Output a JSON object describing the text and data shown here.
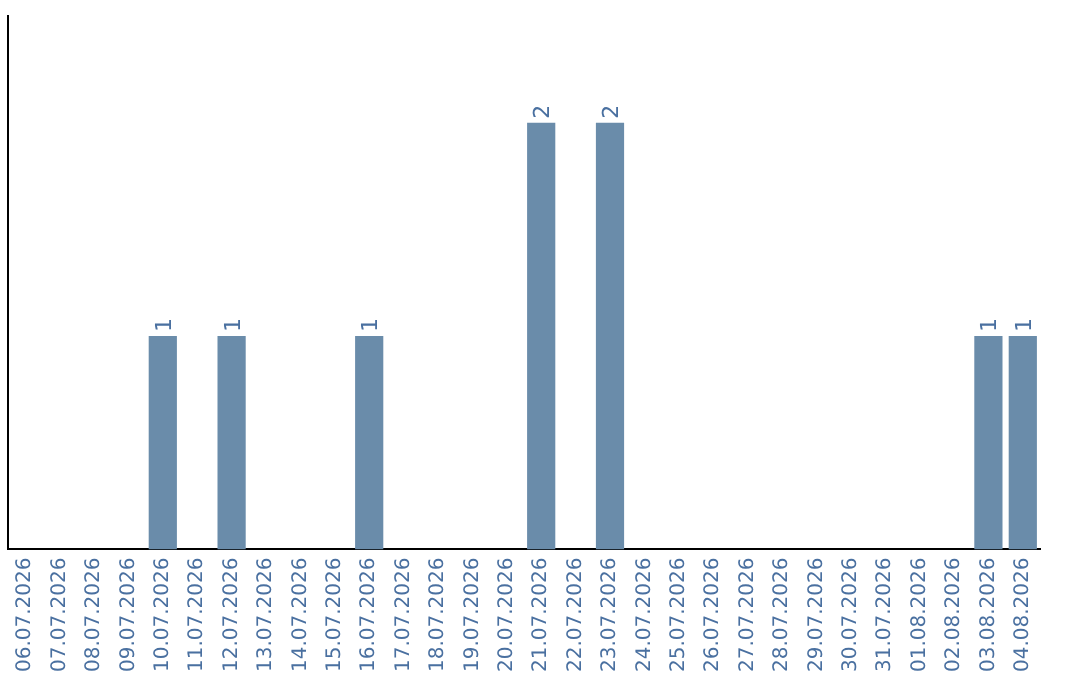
{
  "chart_data": {
    "type": "bar",
    "categories": [
      "06.07.2026",
      "07.07.2026",
      "08.07.2026",
      "09.07.2026",
      "10.07.2026",
      "11.07.2026",
      "12.07.2026",
      "13.07.2026",
      "14.07.2026",
      "15.07.2026",
      "16.07.2026",
      "17.07.2026",
      "18.07.2026",
      "19.07.2026",
      "20.07.2026",
      "21.07.2026",
      "22.07.2026",
      "23.07.2026",
      "24.07.2026",
      "25.07.2026",
      "26.07.2026",
      "27.07.2026",
      "28.07.2026",
      "29.07.2026",
      "30.07.2026",
      "31.07.2026",
      "01.08.2026",
      "02.08.2026",
      "03.08.2026",
      "04.08.2026"
    ],
    "values": [
      0,
      0,
      0,
      0,
      1,
      0,
      1,
      0,
      0,
      0,
      1,
      0,
      0,
      0,
      0,
      2,
      0,
      2,
      0,
      0,
      0,
      0,
      0,
      0,
      0,
      0,
      0,
      0,
      1,
      1
    ],
    "value_labels": [
      null,
      null,
      null,
      null,
      "1",
      null,
      "1",
      null,
      null,
      null,
      "1",
      null,
      null,
      null,
      null,
      "2",
      null,
      "2",
      null,
      null,
      null,
      null,
      null,
      null,
      null,
      null,
      null,
      null,
      "1",
      "1"
    ],
    "color": "#6a8caa",
    "grid": false,
    "legend": false,
    "tick_labels": "x"
  }
}
